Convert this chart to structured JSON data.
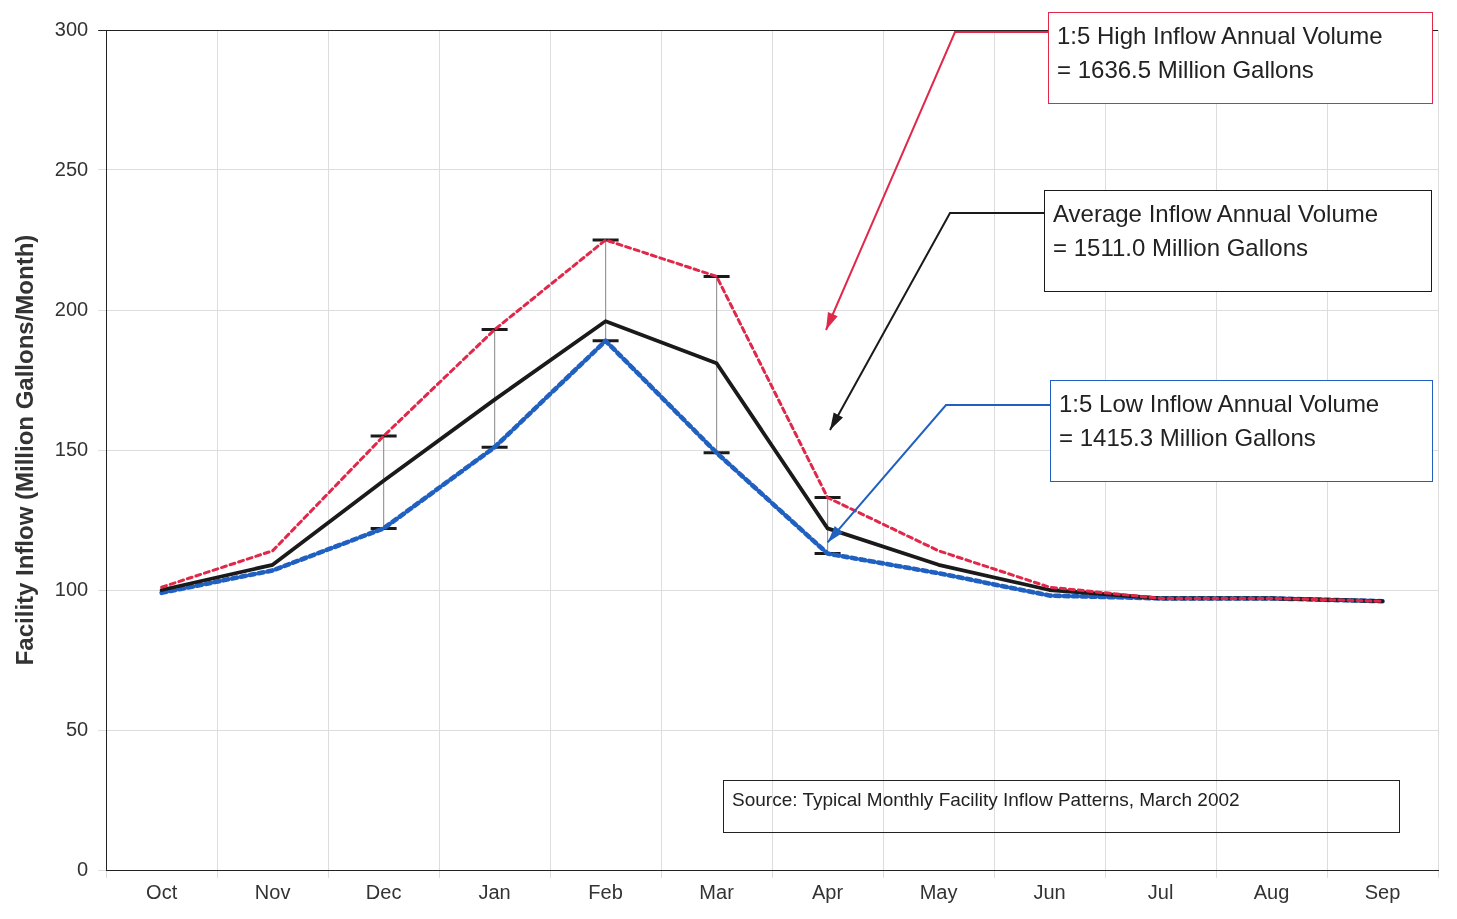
{
  "chart_data": {
    "type": "line",
    "ylabel": "Facility Inflow (Million Gallons/Month)",
    "categories": [
      "Oct",
      "Nov",
      "Dec",
      "Jan",
      "Feb",
      "Mar",
      "Apr",
      "May",
      "Jun",
      "Jul",
      "Aug",
      "Sep"
    ],
    "series": [
      {
        "color": "#e0284a",
        "line_style": "dashed",
        "values": [
          101,
          114,
          155,
          193,
          225,
          212,
          133,
          114,
          101,
          97,
          97,
          96
        ]
      },
      {
        "color": "#1a1a1a",
        "line_style": "solid",
        "values": [
          100,
          109,
          139,
          168,
          196,
          181,
          122,
          109,
          100,
          97,
          97,
          96
        ],
        "errors": [
          null,
          null,
          [
            122,
            155
          ],
          [
            151,
            193
          ],
          [
            189,
            225
          ],
          [
            149,
            212
          ],
          [
            113,
            133
          ],
          null,
          null,
          null,
          null,
          null
        ]
      },
      {
        "color": "#2060c0",
        "line_style": "dashed",
        "values": [
          99,
          107,
          122,
          151,
          189,
          149,
          113,
          106,
          98,
          97,
          97,
          96
        ]
      }
    ],
    "ylim": [
      0,
      300
    ],
    "yticks": [
      0,
      50,
      100,
      150,
      200,
      250,
      300
    ],
    "grid": true,
    "legend": false,
    "marker": "none",
    "annotations": [
      "1:5 High Inflow Annual Volume\n= 1636.5 Million Gallons",
      "Average Inflow Annual Volume\n= 1511.0 Million Gallons",
      {
        "text": "1:5 Low Inflow Annual Volume\n= 1415.3 Million Gallons",
        "x": "Apr",
        "y": 117
      },
      "Source: Typical Monthly Facility Inflow Patterns, March 2002"
    ]
  }
}
